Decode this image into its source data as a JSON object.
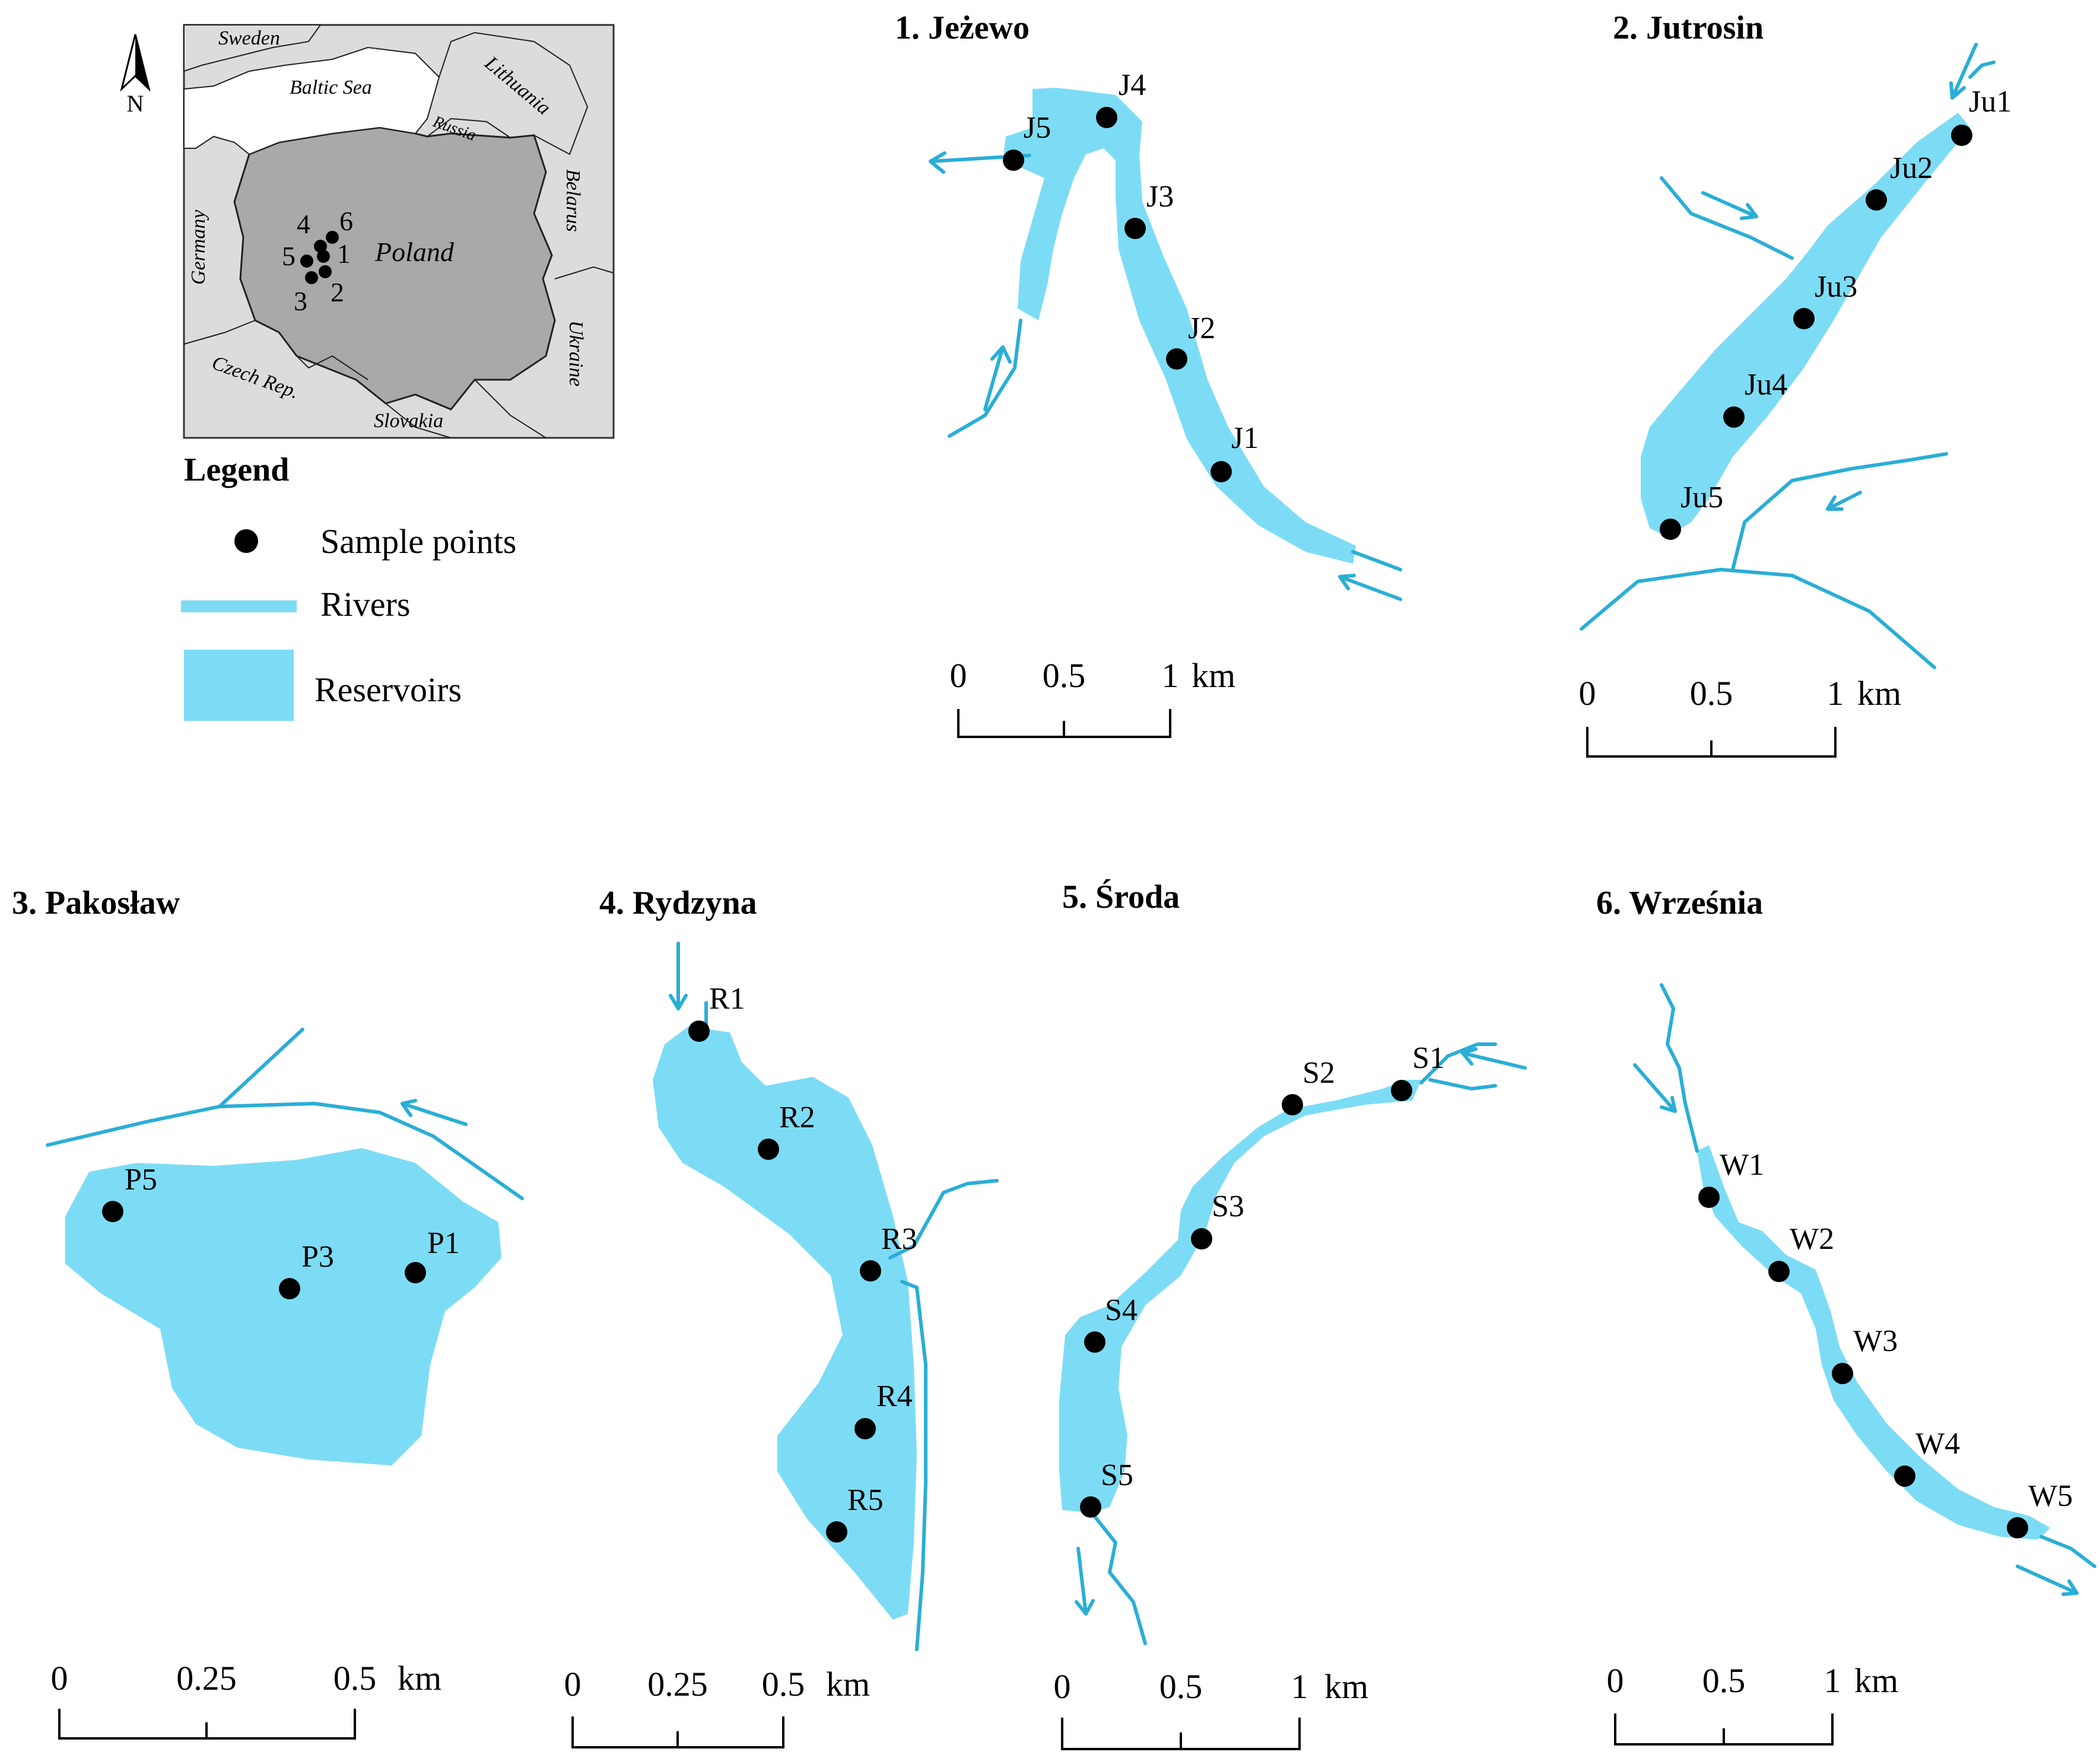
{
  "inset": {
    "north_label": "N",
    "regions": {
      "sweden": "Sweden",
      "baltic": "Baltic Sea",
      "lithuania": "Lithuania",
      "russia": "Russia",
      "belarus": "Belarus",
      "germany": "Germany",
      "poland": "Poland",
      "ukraine": "Ukraine",
      "czech": "Czech Rep.",
      "slovakia": "Slovakia"
    },
    "site_numbers": [
      "1",
      "2",
      "3",
      "4",
      "5",
      "6"
    ]
  },
  "legend": {
    "title": "Legend",
    "items": [
      {
        "label": "Sample points",
        "icon": "dot-icon"
      },
      {
        "label": "Rivers",
        "icon": "river-line-icon"
      },
      {
        "label": "Reservoirs",
        "icon": "reservoir-swatch-icon"
      }
    ]
  },
  "colors": {
    "water": "#7ddcf5",
    "river": "#2aaed6"
  },
  "panels": [
    {
      "title": "1. Jeżewo",
      "points": [
        "J1",
        "J2",
        "J3",
        "J4",
        "J5"
      ],
      "scale": [
        "0",
        "0.5",
        "1"
      ],
      "unit": "km"
    },
    {
      "title": "2. Jutrosin",
      "points": [
        "Ju1",
        "Ju2",
        "Ju3",
        "Ju4",
        "Ju5"
      ],
      "scale": [
        "0",
        "0.5",
        "1"
      ],
      "unit": "km"
    },
    {
      "title": "3. Pakosław",
      "points": [
        "P1",
        "P3",
        "P5"
      ],
      "scale": [
        "0",
        "0.25",
        "0.5"
      ],
      "unit": "km"
    },
    {
      "title": "4. Rydzyna",
      "points": [
        "R1",
        "R2",
        "R3",
        "R4",
        "R5"
      ],
      "scale": [
        "0",
        "0.25",
        "0.5"
      ],
      "unit": "km"
    },
    {
      "title": "5. Środa",
      "points": [
        "S1",
        "S2",
        "S3",
        "S4",
        "S5"
      ],
      "scale": [
        "0",
        "0.5",
        "1"
      ],
      "unit": "km"
    },
    {
      "title": "6. Września",
      "points": [
        "W1",
        "W2",
        "W3",
        "W4",
        "W5"
      ],
      "scale": [
        "0",
        "0.5",
        "1"
      ],
      "unit": "km"
    }
  ]
}
